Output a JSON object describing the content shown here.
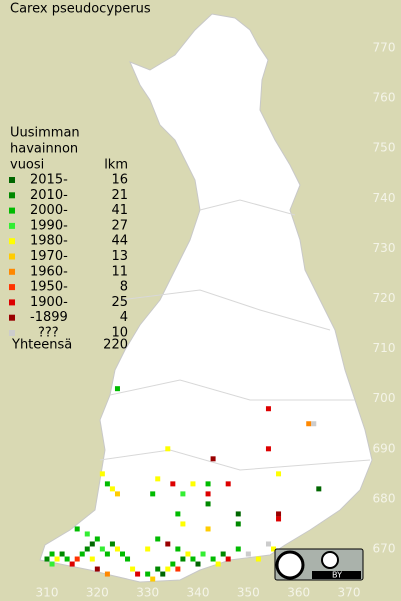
{
  "title": "Carex pseudocyperus",
  "legend": {
    "header": [
      "Uusimman",
      "havainnon",
      "vuosi"
    ],
    "count_header": "lkm",
    "rows": [
      {
        "label": "2015-",
        "count": 16,
        "color": "#006600"
      },
      {
        "label": "2010-",
        "count": 21,
        "color": "#008800"
      },
      {
        "label": "2000-",
        "count": 41,
        "color": "#00bb00"
      },
      {
        "label": "1990-",
        "count": 27,
        "color": "#33ee33"
      },
      {
        "label": "1980-",
        "count": 44,
        "color": "#ffff00"
      },
      {
        "label": "1970-",
        "count": 13,
        "color": "#ffcc00"
      },
      {
        "label": "1960-",
        "count": 11,
        "color": "#ff8800"
      },
      {
        "label": "1950-",
        "count": 8,
        "color": "#ff3300"
      },
      {
        "label": "1900-",
        "count": 25,
        "color": "#dd0000"
      },
      {
        "label": "-1899",
        "count": 4,
        "color": "#990000"
      },
      {
        "label": "???",
        "count": 10,
        "color": "#cccccc"
      }
    ],
    "total_label": "Yhteensä",
    "total": 220
  },
  "axes": {
    "xlim": [
      310,
      370
    ],
    "ylim": [
      670,
      770
    ],
    "xticks": [
      310,
      320,
      330,
      340,
      350,
      360,
      370
    ],
    "yticks": [
      670,
      680,
      690,
      700,
      710,
      720,
      730,
      740,
      750,
      760,
      770
    ]
  },
  "points": [
    [
      324,
      702,
      2
    ],
    [
      354,
      698,
      8
    ],
    [
      362,
      695,
      6
    ],
    [
      363,
      695,
      10
    ],
    [
      354,
      690,
      8
    ],
    [
      334,
      690,
      4
    ],
    [
      343,
      688,
      9
    ],
    [
      356,
      685,
      4
    ],
    [
      364,
      682,
      0
    ],
    [
      321,
      685,
      4
    ],
    [
      322,
      683,
      2
    ],
    [
      323,
      682,
      4
    ],
    [
      324,
      681,
      5
    ],
    [
      331,
      681,
      2
    ],
    [
      332,
      684,
      4
    ],
    [
      335,
      683,
      8
    ],
    [
      337,
      681,
      3
    ],
    [
      339,
      683,
      4
    ],
    [
      342,
      683,
      2
    ],
    [
      342,
      681,
      8
    ],
    [
      342,
      679,
      1
    ],
    [
      336,
      677,
      2
    ],
    [
      337,
      675,
      4
    ],
    [
      342,
      674,
      5
    ],
    [
      348,
      675,
      1
    ],
    [
      348,
      677,
      0
    ],
    [
      356,
      677,
      9
    ],
    [
      356,
      676,
      8
    ],
    [
      346,
      683,
      8
    ],
    [
      310,
      668,
      1
    ],
    [
      311,
      669,
      2
    ],
    [
      311,
      667,
      3
    ],
    [
      312,
      668,
      4
    ],
    [
      313,
      669,
      1
    ],
    [
      314,
      668,
      2
    ],
    [
      315,
      667,
      8
    ],
    [
      316,
      668,
      7
    ],
    [
      317,
      669,
      2
    ],
    [
      318,
      670,
      1
    ],
    [
      319,
      671,
      0
    ],
    [
      320,
      672,
      2
    ],
    [
      319,
      668,
      4
    ],
    [
      321,
      670,
      3
    ],
    [
      322,
      669,
      2
    ],
    [
      323,
      671,
      1
    ],
    [
      324,
      670,
      4
    ],
    [
      325,
      669,
      2
    ],
    [
      320,
      666,
      9
    ],
    [
      322,
      665,
      6
    ],
    [
      326,
      668,
      2
    ],
    [
      327,
      666,
      4
    ],
    [
      328,
      665,
      8
    ],
    [
      330,
      665,
      2
    ],
    [
      331,
      664,
      5
    ],
    [
      332,
      666,
      1
    ],
    [
      333,
      665,
      0
    ],
    [
      334,
      666,
      4
    ],
    [
      335,
      667,
      2
    ],
    [
      336,
      666,
      7
    ],
    [
      337,
      668,
      1
    ],
    [
      338,
      669,
      4
    ],
    [
      339,
      668,
      2
    ],
    [
      340,
      667,
      0
    ],
    [
      341,
      669,
      3
    ],
    [
      343,
      668,
      2
    ],
    [
      344,
      667,
      4
    ],
    [
      345,
      669,
      1
    ],
    [
      346,
      668,
      8
    ],
    [
      348,
      670,
      2
    ],
    [
      350,
      669,
      10
    ],
    [
      352,
      668,
      4
    ],
    [
      354,
      671,
      10
    ],
    [
      355,
      670,
      4
    ],
    [
      318,
      673,
      3
    ],
    [
      316,
      674,
      2
    ],
    [
      330,
      670,
      4
    ],
    [
      332,
      672,
      2
    ],
    [
      334,
      671,
      9
    ],
    [
      336,
      670,
      2
    ]
  ],
  "badge": "BY"
}
